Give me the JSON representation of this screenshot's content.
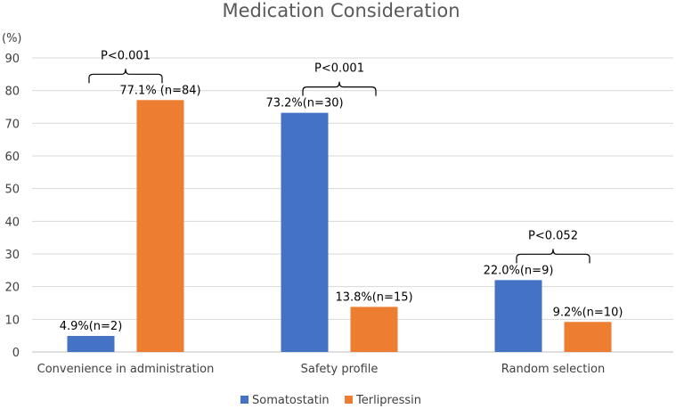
{
  "chart_data": {
    "type": "bar",
    "title": "Medication Consideration",
    "ylabel": "(%)",
    "ylim": [
      0,
      90
    ],
    "yticks": [
      0,
      10,
      20,
      30,
      40,
      50,
      60,
      70,
      80,
      90
    ],
    "grid": true,
    "legend_position": "bottom",
    "categories": [
      "Convenience in administration",
      "Safety profile",
      "Random selection"
    ],
    "series": [
      {
        "name": "Somatostatin",
        "color": "#4472c4",
        "values": [
          4.9,
          73.2,
          22.0
        ],
        "labels": [
          "4.9%(n=2)",
          "73.2%(n=30)",
          "22.0%(n=9)"
        ]
      },
      {
        "name": "Terlipressin",
        "color": "#ed7d31",
        "values": [
          77.1,
          13.8,
          9.2
        ],
        "labels": [
          "77.1% (n=84)",
          "13.8%(n=15)",
          "9.2%(n=10)"
        ]
      }
    ],
    "annotations": [
      {
        "category": 0,
        "text": "P<0.001"
      },
      {
        "category": 1,
        "text": "P<0.001"
      },
      {
        "category": 2,
        "text": "P<0.052"
      }
    ]
  }
}
